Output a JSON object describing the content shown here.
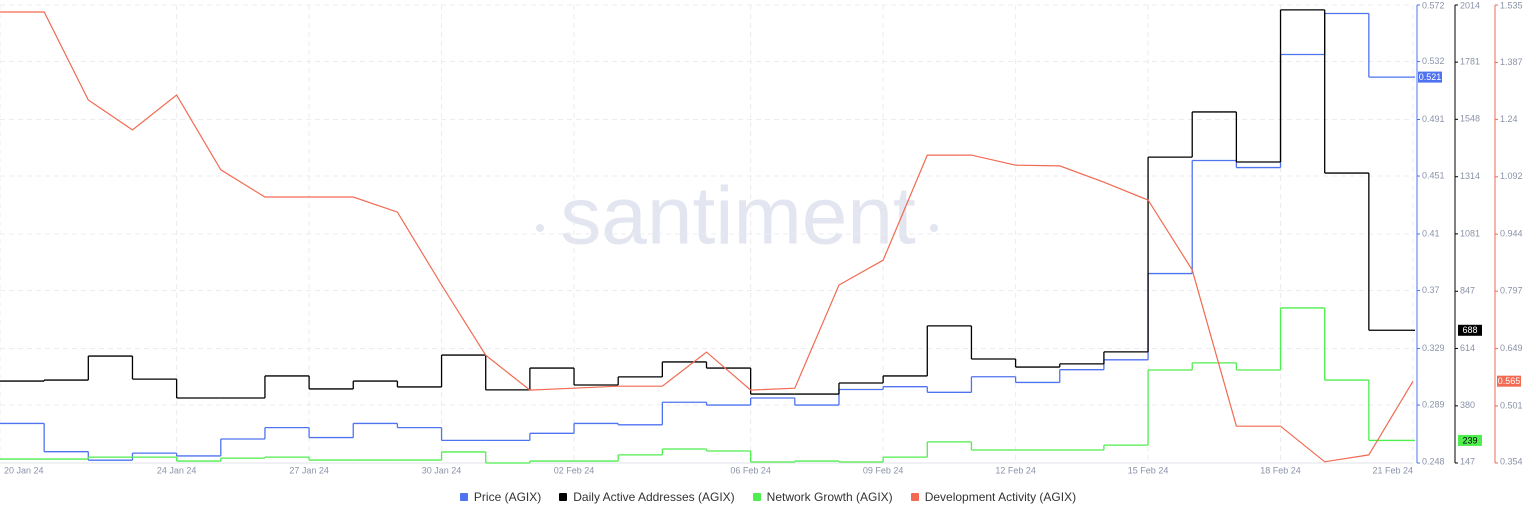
{
  "watermark": "santiment",
  "chart_data": {
    "type": "line",
    "x": [
      "2024-01-20",
      "2024-01-21",
      "2024-01-22",
      "2024-01-23",
      "2024-01-24",
      "2024-01-25",
      "2024-01-26",
      "2024-01-27",
      "2024-01-28",
      "2024-01-29",
      "2024-01-30",
      "2024-01-31",
      "2024-02-01",
      "2024-02-02",
      "2024-02-03",
      "2024-02-04",
      "2024-02-05",
      "2024-02-06",
      "2024-02-07",
      "2024-02-08",
      "2024-02-09",
      "2024-02-10",
      "2024-02-11",
      "2024-02-12",
      "2024-02-13",
      "2024-02-14",
      "2024-02-15",
      "2024-02-16",
      "2024-02-17",
      "2024-02-18",
      "2024-02-19",
      "2024-02-20",
      "2024-02-21"
    ],
    "xlim": [
      "2024-01-20",
      "2024-02-21"
    ],
    "xticks": [
      {
        "value": "2024-01-20",
        "label": "20 Jan 24"
      },
      {
        "value": "2024-01-24",
        "label": "24 Jan 24"
      },
      {
        "value": "2024-01-27",
        "label": "27 Jan 24"
      },
      {
        "value": "2024-01-30",
        "label": "30 Jan 24"
      },
      {
        "value": "2024-02-02",
        "label": "02 Feb 24"
      },
      {
        "value": "2024-02-06",
        "label": "06 Feb 24"
      },
      {
        "value": "2024-02-09",
        "label": "09 Feb 24"
      },
      {
        "value": "2024-02-12",
        "label": "12 Feb 24"
      },
      {
        "value": "2024-02-15",
        "label": "15 Feb 24"
      },
      {
        "value": "2024-02-18",
        "label": "18 Feb 24"
      },
      {
        "value": "2024-02-21",
        "label": "21 Feb 24"
      }
    ],
    "ylim": [
      0.248,
      0.572
    ],
    "yticks": [
      0.248,
      0.289,
      0.329,
      0.37,
      0.41,
      0.451,
      0.491,
      0.532,
      0.572
    ],
    "y2lim": [
      147,
      2014
    ],
    "y2ticks": [
      147,
      380,
      614,
      847,
      1081,
      1314,
      1548,
      1781,
      2014
    ],
    "y3lim": [
      0.354,
      1.535
    ],
    "y3ticks": [
      0.354,
      0.501,
      0.649,
      0.797,
      0.944,
      1.092,
      1.24,
      1.387,
      1.535
    ],
    "grid": true,
    "series": [
      {
        "name": "Price (AGIX)",
        "color": "#4f73f0",
        "axis": "y",
        "step": true,
        "values": [
          0.276,
          0.256,
          0.25,
          0.255,
          0.253,
          0.265,
          0.273,
          0.266,
          0.276,
          0.273,
          0.264,
          0.264,
          0.269,
          0.276,
          0.275,
          0.291,
          0.289,
          0.294,
          0.289,
          0.3,
          0.302,
          0.298,
          0.309,
          0.305,
          0.314,
          0.321,
          0.382,
          0.462,
          0.457,
          0.537,
          0.566,
          0.521,
          0.521
        ]
      },
      {
        "name": "Daily Active Addresses (AGIX)",
        "color": "#000000",
        "axis": "y2",
        "step": true,
        "values": [
          481,
          485,
          583,
          489,
          412,
          412,
          502,
          449,
          481,
          457,
          587,
          445,
          534,
          465,
          498,
          559,
          534,
          428,
          428,
          473,
          502,
          706,
          571,
          538,
          551,
          600,
          1394,
          1578,
          1374,
          1994,
          1329,
          688,
          688
        ]
      },
      {
        "name": "Network Growth (AGIX)",
        "color": "#4fee4f",
        "axis": "y2",
        "step": true,
        "values": [
          163,
          163,
          171,
          171,
          155,
          167,
          171,
          159,
          159,
          159,
          192,
          147,
          155,
          155,
          180,
          204,
          196,
          151,
          155,
          151,
          171,
          233,
          200,
          200,
          200,
          220,
          526,
          555,
          526,
          779,
          485,
          239,
          239
        ]
      },
      {
        "name": "Development Activity (AGIX)",
        "color": "#f26a52",
        "axis": "y3",
        "step": false,
        "values": [
          1.517,
          1.517,
          1.29,
          1.213,
          1.303,
          1.11,
          1.04,
          1.04,
          1.04,
          1.001,
          0.813,
          0.632,
          0.542,
          0.547,
          0.552,
          0.552,
          0.64,
          0.542,
          0.547,
          0.813,
          0.877,
          1.148,
          1.148,
          1.122,
          1.12,
          1.078,
          1.032,
          0.852,
          0.449,
          0.449,
          0.357,
          0.375,
          0.565
        ]
      }
    ]
  }
}
